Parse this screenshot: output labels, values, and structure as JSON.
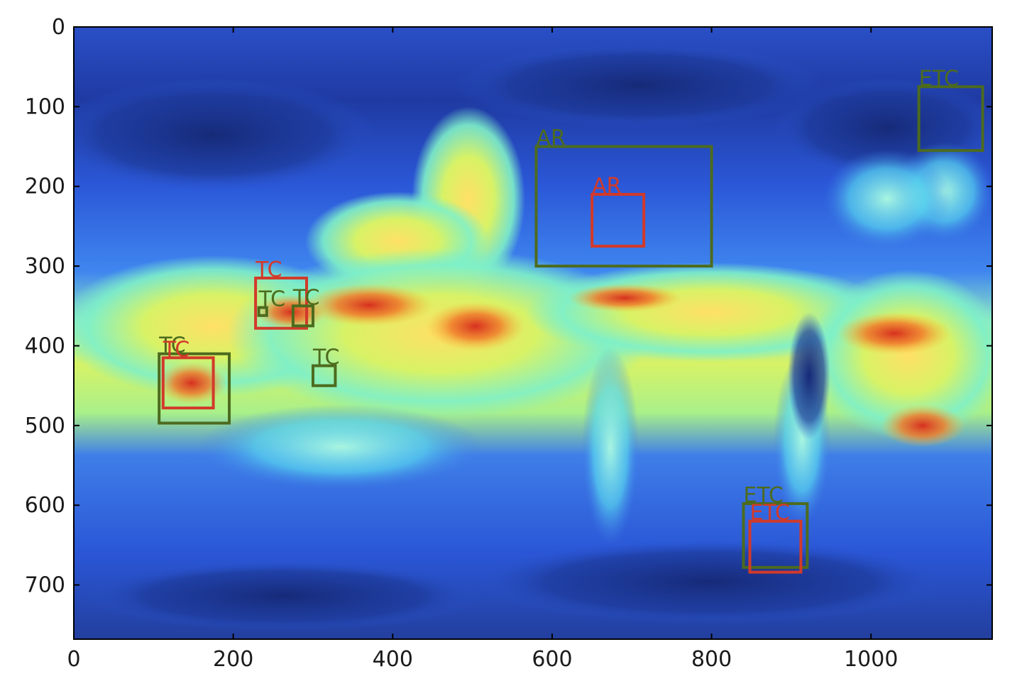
{
  "chart_data": {
    "type": "heatmap",
    "title": "",
    "xlabel": "",
    "ylabel": "",
    "xlim": [
      0,
      1152
    ],
    "ylim": [
      768,
      0
    ],
    "x_ticks": [
      0,
      200,
      400,
      600,
      800,
      1000
    ],
    "y_ticks": [
      0,
      100,
      200,
      300,
      400,
      500,
      600,
      700
    ],
    "x_tick_labels": [
      "0",
      "200",
      "400",
      "600",
      "800",
      "1000"
    ],
    "y_tick_labels": [
      "0",
      "100",
      "200",
      "300",
      "400",
      "500",
      "600",
      "700"
    ],
    "colormap": "jet",
    "colors": {
      "ground_truth_box": "#4d6b1e",
      "prediction_box": "#d23a2a",
      "axis_frame": "#000000"
    },
    "boxes": [
      {
        "label": "ETC",
        "set": "ground_truth",
        "x0": 1060,
        "y0": 75,
        "x1": 1140,
        "y1": 155
      },
      {
        "label": "AR",
        "set": "ground_truth",
        "x0": 580,
        "y0": 150,
        "x1": 800,
        "y1": 300
      },
      {
        "label": "AR",
        "set": "prediction",
        "x0": 650,
        "y0": 210,
        "x1": 715,
        "y1": 275
      },
      {
        "label": "TC",
        "set": "prediction",
        "x0": 228,
        "y0": 315,
        "x1": 292,
        "y1": 378
      },
      {
        "label": "TC",
        "set": "ground_truth",
        "x0": 232,
        "y0": 352,
        "x1": 242,
        "y1": 362
      },
      {
        "label": "TC",
        "set": "ground_truth",
        "x0": 275,
        "y0": 350,
        "x1": 300,
        "y1": 375
      },
      {
        "label": "TC",
        "set": "ground_truth",
        "x0": 300,
        "y0": 425,
        "x1": 328,
        "y1": 450
      },
      {
        "label": "TC",
        "set": "ground_truth",
        "x0": 107,
        "y0": 410,
        "x1": 195,
        "y1": 497
      },
      {
        "label": "TC",
        "set": "prediction",
        "x0": 112,
        "y0": 415,
        "x1": 175,
        "y1": 478
      },
      {
        "label": "ETC",
        "set": "ground_truth",
        "x0": 840,
        "y0": 598,
        "x1": 920,
        "y1": 678
      },
      {
        "label": "ETC",
        "set": "prediction",
        "x0": 848,
        "y0": 620,
        "x1": 912,
        "y1": 684
      }
    ]
  }
}
